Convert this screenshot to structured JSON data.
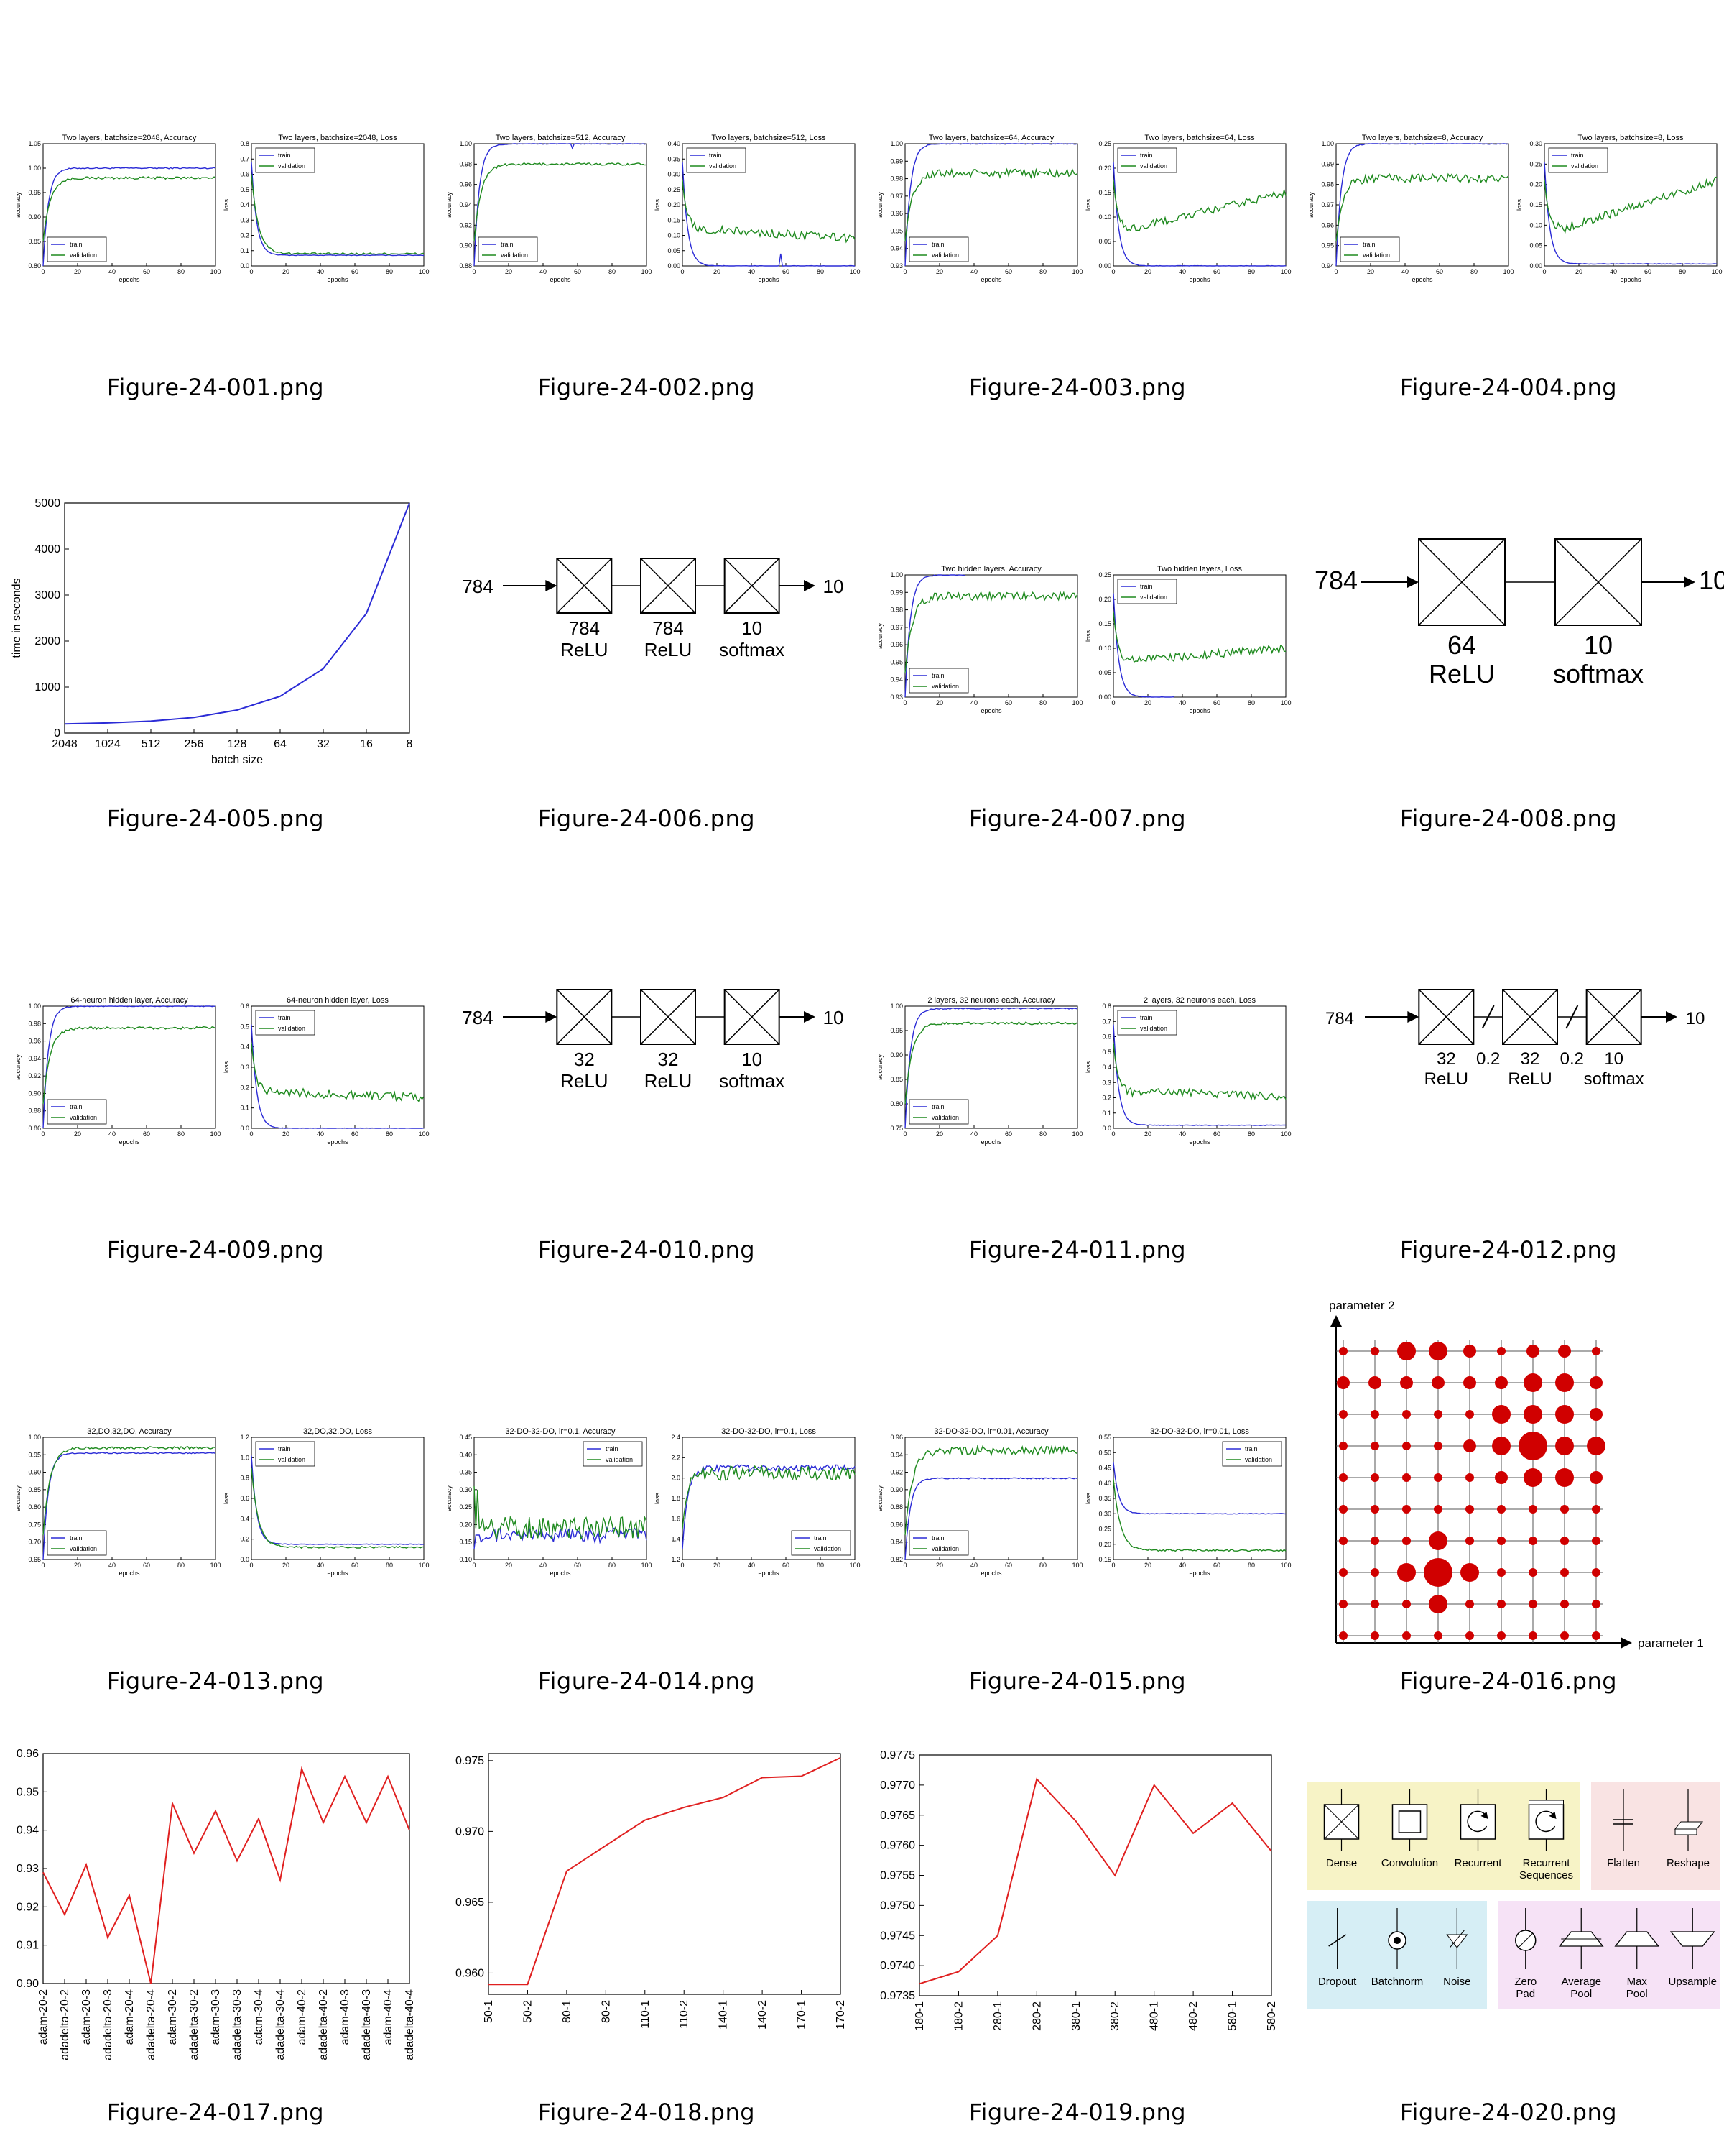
{
  "captions": [
    "Figure-24-001.png",
    "Figure-24-002.png",
    "Figure-24-003.png",
    "Figure-24-004.png",
    "Figure-24-005.png",
    "Figure-24-006.png",
    "Figure-24-007.png",
    "Figure-24-008.png",
    "Figure-24-009.png",
    "Figure-24-010.png",
    "Figure-24-011.png",
    "Figure-24-012.png",
    "Figure-24-013.png",
    "Figure-24-014.png",
    "Figure-24-015.png",
    "Figure-24-016.png",
    "Figure-24-017.png",
    "Figure-24-018.png",
    "Figure-24-019.png",
    "Figure-24-020.png"
  ],
  "colors": {
    "train": "#2b2bd6",
    "validation": "#1f8a1f",
    "red": "#e02020",
    "dot": "#d00000",
    "yellow": "#f7f3c6",
    "pink": "#f9e3e3",
    "blue": "#d6eef5",
    "violet": "#f6e2f6"
  },
  "legend": {
    "train": "train",
    "validation": "validation"
  },
  "axis": {
    "epochs": "epochs",
    "accuracy": "accuracy",
    "loss": "loss"
  },
  "chart_data": [
    {
      "type": "line",
      "titles": [
        "Two layers, batchsize=2048, Accuracy",
        "Two layers, batchsize=2048, Loss"
      ],
      "acc": {
        "ylim": [
          0.8,
          1.05
        ],
        "ticks": [
          "0.80",
          "0.85",
          "0.90",
          "0.95",
          "1.00",
          "1.05"
        ],
        "train_final": 1.0,
        "val_final": 0.98,
        "legend": "bottom-left"
      },
      "loss": {
        "ylim": [
          0.0,
          0.8
        ],
        "ticks": [
          "0.0",
          "0.1",
          "0.2",
          "0.3",
          "0.4",
          "0.5",
          "0.6",
          "0.7",
          "0.8"
        ],
        "train_final": 0.07,
        "val_final": 0.08,
        "legend": "top-left"
      },
      "xticks": [
        "0",
        "20",
        "40",
        "60",
        "80",
        "100"
      ]
    },
    {
      "type": "line",
      "titles": [
        "Two layers, batchsize=512, Accuracy",
        "Two layers, batchsize=512, Loss"
      ],
      "acc": {
        "ylim": [
          0.88,
          1.0
        ],
        "ticks": [
          "0.88",
          "0.90",
          "0.92",
          "0.94",
          "0.96",
          "0.98",
          "1.00"
        ],
        "train_final": 1.0,
        "val_final": 0.98,
        "legend": "bottom-left"
      },
      "loss": {
        "ylim": [
          0.0,
          0.4
        ],
        "ticks": [
          "0.00",
          "0.05",
          "0.10",
          "0.15",
          "0.20",
          "0.25",
          "0.30",
          "0.35",
          "0.40"
        ],
        "train_final": 0.0,
        "val_final": 0.09,
        "legend": "top-left"
      },
      "xticks": [
        "0",
        "20",
        "40",
        "60",
        "80",
        "100"
      ]
    },
    {
      "type": "line",
      "titles": [
        "Two layers, batchsize=64, Accuracy",
        "Two layers, batchsize=64, Loss"
      ],
      "acc": {
        "ylim": [
          0.93,
          1.0
        ],
        "ticks": [
          "0.93",
          "0.94",
          "0.95",
          "0.96",
          "0.97",
          "0.98",
          "0.99",
          "1.00"
        ],
        "train_final": 1.0,
        "val_final": 0.983,
        "legend": "bottom-left"
      },
      "loss": {
        "ylim": [
          0.0,
          0.25
        ],
        "ticks": [
          "0.00",
          "0.05",
          "0.10",
          "0.15",
          "0.20",
          "0.25"
        ],
        "train_final": 0.0,
        "val_final": 0.15,
        "legend": "top-left"
      },
      "xticks": [
        "0",
        "20",
        "40",
        "60",
        "80",
        "100"
      ]
    },
    {
      "type": "line",
      "titles": [
        "Two layers, batchsize=8, Accuracy",
        "Two layers, batchsize=8, Loss"
      ],
      "acc": {
        "ylim": [
          0.94,
          1.0
        ],
        "ticks": [
          "0.94",
          "0.95",
          "0.96",
          "0.97",
          "0.98",
          "0.99",
          "1.00"
        ],
        "train_final": 1.0,
        "val_final": 0.983,
        "legend": "bottom-left"
      },
      "loss": {
        "ylim": [
          0.0,
          0.3
        ],
        "ticks": [
          "0.00",
          "0.05",
          "0.10",
          "0.15",
          "0.20",
          "0.25",
          "0.30"
        ],
        "train_final": 0.005,
        "val_final": 0.21,
        "legend": "top-left"
      },
      "xticks": [
        "0",
        "20",
        "40",
        "60",
        "80",
        "100"
      ]
    },
    {
      "type": "line",
      "categories": [
        "2048",
        "1024",
        "512",
        "256",
        "128",
        "64",
        "32",
        "16",
        "8"
      ],
      "values": [
        200,
        220,
        260,
        340,
        500,
        800,
        1400,
        2600,
        5000
      ],
      "ylabel": "time in seconds",
      "xlabel": "batch size",
      "ylim": [
        0,
        5000
      ],
      "yticks": [
        "0",
        "1000",
        "2000",
        "3000",
        "4000",
        "5000"
      ]
    },
    {
      "type": "diagram",
      "input": "784",
      "output": "10",
      "layers": [
        [
          "784",
          "ReLU"
        ],
        [
          "784",
          "ReLU"
        ],
        [
          "10",
          "softmax"
        ]
      ]
    },
    {
      "type": "line",
      "titles": [
        "Two hidden layers, Accuracy",
        "Two hidden layers, Loss"
      ],
      "acc": {
        "ylim": [
          0.93,
          1.0
        ],
        "ticks": [
          "0.93",
          "0.94",
          "0.95",
          "0.96",
          "0.97",
          "0.98",
          "0.99",
          "1.00"
        ],
        "train_final": 1.0,
        "val_final": 0.988,
        "legend": "bottom-left",
        "train_stop": 35
      },
      "loss": {
        "ylim": [
          0.0,
          0.25
        ],
        "ticks": [
          "0.00",
          "0.05",
          "0.10",
          "0.15",
          "0.20",
          "0.25"
        ],
        "train_final": 0.0,
        "val_final": 0.1,
        "legend": "top-left",
        "train_stop": 35
      },
      "xticks": [
        "0",
        "20",
        "40",
        "60",
        "80",
        "100"
      ]
    },
    {
      "type": "diagram",
      "input": "784",
      "output": "10",
      "layers": [
        [
          "64",
          "ReLU"
        ],
        [
          "10",
          "softmax"
        ]
      ]
    },
    {
      "type": "line",
      "titles": [
        "64-neuron hidden layer, Accuracy",
        "64-neuron hidden layer, Loss"
      ],
      "acc": {
        "ylim": [
          0.86,
          1.0
        ],
        "ticks": [
          "0.86",
          "0.88",
          "0.90",
          "0.92",
          "0.94",
          "0.96",
          "0.98",
          "1.00"
        ],
        "train_final": 1.0,
        "val_final": 0.975,
        "legend": "bottom-left"
      },
      "loss": {
        "ylim": [
          0.0,
          0.6
        ],
        "ticks": [
          "0.0",
          "0.1",
          "0.2",
          "0.3",
          "0.4",
          "0.5",
          "0.6"
        ],
        "train_final": 0.0,
        "val_final": 0.15,
        "legend": "top-left"
      },
      "xticks": [
        "0",
        "20",
        "40",
        "60",
        "80",
        "100"
      ]
    },
    {
      "type": "diagram",
      "input": "784",
      "output": "10",
      "layers": [
        [
          "32",
          "ReLU"
        ],
        [
          "32",
          "ReLU"
        ],
        [
          "10",
          "softmax"
        ]
      ]
    },
    {
      "type": "line",
      "titles": [
        "2 layers, 32 neurons each, Accuracy",
        "2 layers, 32 neurons each, Loss"
      ],
      "acc": {
        "ylim": [
          0.75,
          1.0
        ],
        "ticks": [
          "0.75",
          "0.80",
          "0.85",
          "0.90",
          "0.95",
          "1.00"
        ],
        "train_final": 0.995,
        "val_final": 0.965,
        "legend": "bottom-left"
      },
      "loss": {
        "ylim": [
          0.0,
          0.8
        ],
        "ticks": [
          "0.0",
          "0.1",
          "0.2",
          "0.3",
          "0.4",
          "0.5",
          "0.6",
          "0.7",
          "0.8"
        ],
        "train_final": 0.02,
        "val_final": 0.21,
        "legend": "top-left"
      },
      "xticks": [
        "0",
        "20",
        "40",
        "60",
        "80",
        "100"
      ]
    },
    {
      "type": "diagram",
      "input": "784",
      "output": "10",
      "layers": [
        [
          "32",
          "ReLU"
        ],
        [
          "32",
          "ReLU"
        ],
        [
          "10",
          "softmax"
        ]
      ],
      "dropout": [
        "0.2",
        "0.2"
      ]
    },
    {
      "type": "line",
      "titles": [
        "32,DO,32,DO, Accuracy",
        "32,DO,32,DO, Loss"
      ],
      "acc": {
        "ylim": [
          0.65,
          1.0
        ],
        "ticks": [
          "0.65",
          "0.70",
          "0.75",
          "0.80",
          "0.85",
          "0.90",
          "0.95",
          "1.00"
        ],
        "train_final": 0.955,
        "val_final": 0.97,
        "legend": "bottom-left"
      },
      "loss": {
        "ylim": [
          0.0,
          1.2
        ],
        "ticks": [
          "0.0",
          "0.2",
          "0.4",
          "0.6",
          "0.8",
          "1.0",
          "1.2"
        ],
        "train_final": 0.15,
        "val_final": 0.12,
        "legend": "top-left"
      },
      "xticks": [
        "0",
        "20",
        "40",
        "60",
        "80",
        "100"
      ]
    },
    {
      "type": "line",
      "titles": [
        "32-DO-32-DO, lr=0.1, Accuracy",
        "32-DO-32-DO, lr=0.1, Loss"
      ],
      "acc": {
        "ylim": [
          0.1,
          0.45
        ],
        "ticks": [
          "0.10",
          "0.15",
          "0.20",
          "0.25",
          "0.30",
          "0.35",
          "0.40",
          "0.45"
        ],
        "train_final": 0.17,
        "val_final": 0.19,
        "legend": "top-right"
      },
      "loss": {
        "ylim": [
          1.2,
          2.4
        ],
        "ticks": [
          "1.2",
          "1.4",
          "1.6",
          "1.8",
          "2.0",
          "2.2",
          "2.4"
        ],
        "train_final": 2.1,
        "val_final": 2.05,
        "legend": "bottom-right"
      },
      "xticks": [
        "0",
        "20",
        "40",
        "60",
        "80",
        "100"
      ]
    },
    {
      "type": "line",
      "titles": [
        "32-DO-32-DO, lr=0.01, Accuracy",
        "32-DO-32-DO, lr=0.01, Loss"
      ],
      "acc": {
        "ylim": [
          0.82,
          0.96
        ],
        "ticks": [
          "0.82",
          "0.84",
          "0.86",
          "0.88",
          "0.90",
          "0.92",
          "0.94",
          "0.96"
        ],
        "train_final": 0.913,
        "val_final": 0.945,
        "legend": "bottom-left"
      },
      "loss": {
        "ylim": [
          0.15,
          0.55
        ],
        "ticks": [
          "0.15",
          "0.20",
          "0.25",
          "0.30",
          "0.35",
          "0.40",
          "0.45",
          "0.50",
          "0.55"
        ],
        "train_final": 0.3,
        "val_final": 0.18,
        "legend": "top-right"
      },
      "xticks": [
        "0",
        "20",
        "40",
        "60",
        "80",
        "100"
      ]
    },
    {
      "type": "scatter",
      "xlabel": "parameter 1",
      "ylabel": "parameter 2",
      "grid_sizes": [
        [
          1,
          1,
          3,
          3,
          2,
          1,
          2,
          2,
          1
        ],
        [
          2,
          2,
          2,
          2,
          2,
          2,
          3,
          3,
          2
        ],
        [
          1,
          1,
          1,
          1,
          1,
          3,
          3,
          3,
          2
        ],
        [
          1,
          1,
          1,
          1,
          2,
          3,
          4,
          3,
          3
        ],
        [
          1,
          1,
          1,
          1,
          1,
          2,
          3,
          3,
          2
        ],
        [
          1,
          1,
          1,
          1,
          1,
          1,
          1,
          1,
          1
        ],
        [
          1,
          1,
          1,
          3,
          1,
          1,
          1,
          1,
          1
        ],
        [
          1,
          1,
          3,
          4,
          3,
          1,
          1,
          1,
          1
        ],
        [
          1,
          1,
          1,
          3,
          1,
          1,
          1,
          1,
          1
        ],
        [
          1,
          1,
          1,
          1,
          1,
          1,
          1,
          1,
          1
        ]
      ]
    },
    {
      "type": "line",
      "categories": [
        "adam-20-2",
        "adadelta-20-2",
        "adam-20-3",
        "adadelta-20-3",
        "adam-20-4",
        "adadelta-20-4",
        "adam-30-2",
        "adadelta-30-2",
        "adam-30-3",
        "adadelta-30-3",
        "adam-30-4",
        "adadelta-30-4",
        "adam-40-2",
        "adadelta-40-2",
        "adam-40-3",
        "adadelta-40-3",
        "adam-40-4",
        "adadelta-40-4"
      ],
      "values": [
        0.929,
        0.918,
        0.931,
        0.912,
        0.923,
        0.9,
        0.947,
        0.934,
        0.945,
        0.932,
        0.943,
        0.927,
        0.956,
        0.942,
        0.954,
        0.942,
        0.954,
        0.94
      ],
      "ylim": [
        0.9,
        0.96
      ],
      "yticks": [
        "0.90",
        "0.91",
        "0.92",
        "0.93",
        "0.94",
        "0.95",
        "0.96"
      ]
    },
    {
      "type": "line",
      "categories": [
        "50-1",
        "50-2",
        "80-1",
        "80-2",
        "110-1",
        "110-2",
        "140-1",
        "140-2",
        "170-1",
        "170-2"
      ],
      "values": [
        0.9592,
        0.9592,
        0.9672,
        0.969,
        0.9708,
        0.9717,
        0.9724,
        0.9738,
        0.9739,
        0.9752
      ],
      "ylim": [
        0.9585,
        0.9755
      ],
      "yticks": [
        "0.960",
        "0.965",
        "0.970",
        "0.975"
      ]
    },
    {
      "type": "line",
      "categories": [
        "180-1",
        "180-2",
        "280-1",
        "280-2",
        "380-1",
        "380-2",
        "480-1",
        "480-2",
        "580-1",
        "580-2"
      ],
      "values": [
        0.9737,
        0.9739,
        0.9745,
        0.9771,
        0.9764,
        0.9755,
        0.977,
        0.9762,
        0.9767,
        0.9759
      ],
      "ylim": [
        0.9735,
        0.9775
      ],
      "yticks": [
        "0.9735",
        "0.9740",
        "0.9745",
        "0.9750",
        "0.9755",
        "0.9760",
        "0.9765",
        "0.9770",
        "0.9775"
      ]
    },
    {
      "type": "legend-icons",
      "groups": [
        {
          "color": "yellow",
          "items": [
            "Dense",
            "Convolution",
            "Recurrent",
            "Recurrent\nSequences"
          ]
        },
        {
          "color": "pink",
          "items": [
            "Flatten",
            "Reshape"
          ]
        },
        {
          "color": "blue",
          "items": [
            "Dropout",
            "Batchnorm",
            "Noise"
          ]
        },
        {
          "color": "violet",
          "items": [
            "Zero\nPad",
            "Average\nPool",
            "Max\nPool",
            "Upsample"
          ]
        }
      ]
    }
  ]
}
